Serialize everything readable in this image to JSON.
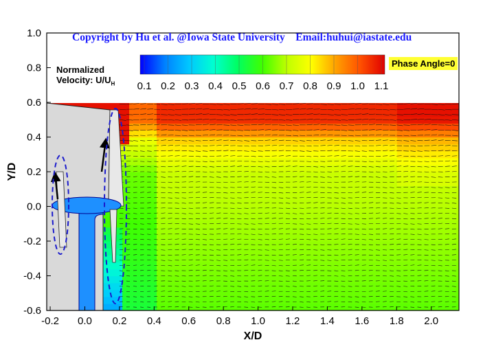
{
  "header": {
    "copyright": "Copyright by Hu et al. @Iowa State University",
    "email": "Email:huhui@iastate.edu"
  },
  "colorbar": {
    "title_line1": "Normalized",
    "title_line2": "Velocity: U/U",
    "title_sub": "H",
    "ticks": [
      "0.1",
      "0.2",
      "0.3",
      "0.4",
      "0.5",
      "0.6",
      "0.7",
      "0.8",
      "0.9",
      "1.0",
      "1.1"
    ],
    "colors": [
      "#0000ff",
      "#0080ff",
      "#00c8ff",
      "#00ffd0",
      "#00ff60",
      "#40ff00",
      "#c0ff00",
      "#ffff00",
      "#ffa000",
      "#ff5000",
      "#e00000"
    ]
  },
  "phase_label": "Phase Angle=0",
  "colors": {
    "turbine": "#d9d9d9",
    "hub": "#1e90ff",
    "ellipse": "#1a1acc"
  },
  "chart_data": {
    "type": "heatmap",
    "xlabel": "X/D",
    "ylabel": "Y/D",
    "xlim": [
      -0.22,
      2.16
    ],
    "ylim": [
      -0.6,
      1.0
    ],
    "xticks": [
      "-0.2",
      "0.0",
      "0.2",
      "0.4",
      "0.6",
      "0.8",
      "1.0",
      "1.2",
      "1.4",
      "1.6",
      "1.8",
      "2.0"
    ],
    "yticks": [
      "1.0",
      "0.8",
      "0.6",
      "0.4",
      "0.2",
      "0.0",
      "-0.2",
      "-0.4",
      "-0.6"
    ],
    "field_xlim": [
      -0.22,
      2.16
    ],
    "field_ylim": [
      -0.6,
      0.6
    ],
    "velocity_profile_far_wake": [
      {
        "y": 0.58,
        "u": 1.05
      },
      {
        "y": 0.45,
        "u": 0.95
      },
      {
        "y": 0.35,
        "u": 0.8
      },
      {
        "y": 0.2,
        "u": 0.7
      },
      {
        "y": 0.0,
        "u": 0.62
      },
      {
        "y": -0.3,
        "u": 0.6
      },
      {
        "y": -0.55,
        "u": 0.58
      }
    ]
  }
}
